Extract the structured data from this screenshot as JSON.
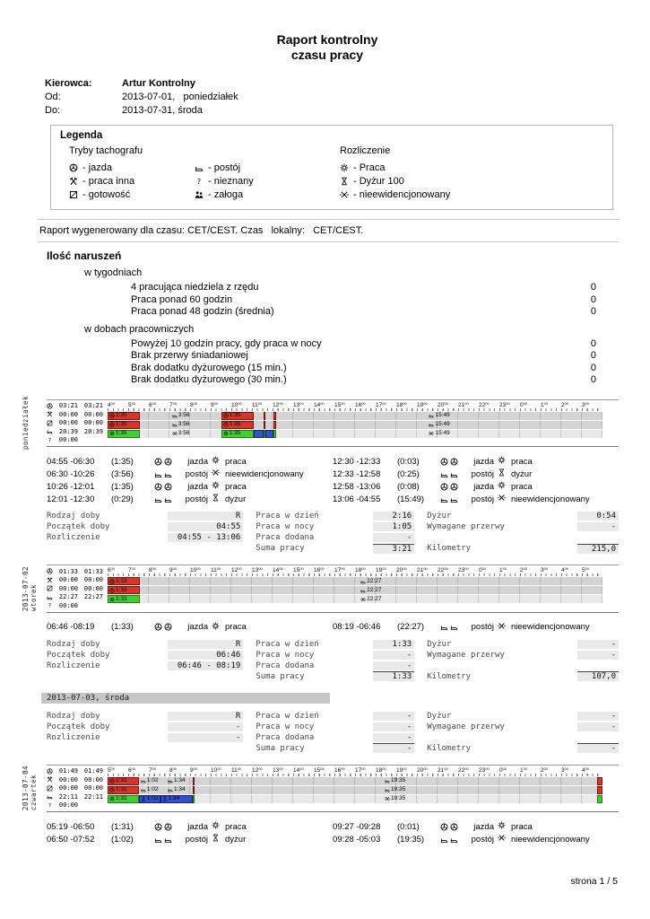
{
  "title": {
    "line1": "Raport kontrolny",
    "line2": "czasu pracy"
  },
  "header": {
    "driver_label": "Kierowca:",
    "driver_name": "Artur Kontrolny",
    "from_label": "Od:",
    "from_value": "2013-07-01,   poniedziałek",
    "to_label": "Do:",
    "to_value": "2013-07-31, środa"
  },
  "legend": {
    "title": "Legenda",
    "tacho_title": "Tryby tachografu",
    "settle_title": "Rozliczenie",
    "tacho_col1": [
      {
        "icon": "jazda-icon",
        "label": "- jazda"
      },
      {
        "icon": "praca-inna-icon",
        "label": "- praca inna"
      },
      {
        "icon": "gotowosc-icon",
        "label": "- gotowość"
      }
    ],
    "tacho_col2": [
      {
        "icon": "postoj-icon",
        "label": "- postój"
      },
      {
        "icon": "nieznany-icon",
        "label": "- nieznany"
      },
      {
        "icon": "zaloga-icon",
        "label": "- załoga"
      }
    ],
    "settle_col": [
      {
        "icon": "praca-icon",
        "label": "- Praca"
      },
      {
        "icon": "dyzur-icon",
        "label": "- Dyżur 100"
      },
      {
        "icon": "nieewid-icon",
        "label": "- nieewidencjonowany"
      }
    ]
  },
  "generated_line": "Raport wygenerowany dla czasu: CET/CEST. Czas   lokalny:   CET/CEST.",
  "violations": {
    "title": "Ilość naruszeń",
    "weekly_title": "w tygodniach",
    "weekly": [
      {
        "label": "4 pracująca niedziela z rzędu",
        "value": "0"
      },
      {
        "label": "Praca ponad 60 godzin",
        "value": "0"
      },
      {
        "label": "Praca ponad 48 godzin (średnia)",
        "value": "0"
      }
    ],
    "daily_title": "w dobach pracowniczych",
    "daily": [
      {
        "label": "Powyżej 10 godzin pracy, gdy praca w nocy",
        "value": "0"
      },
      {
        "label": "Brak przerwy śniadaniowej",
        "value": "0"
      },
      {
        "label": "Brak dodatku dyżurowego (15 min.)",
        "value": "0"
      },
      {
        "label": "Brak dodatku dyżurowego (30 min.)",
        "value": "0"
      }
    ]
  },
  "summary_labels": {
    "rodzaj": "Rodzaj doby",
    "poczatek": "Początek doby",
    "rozliczenie": "Rozliczenie",
    "praca_dzien": "Praca w dzień",
    "praca_noc": "Praca w nocy",
    "praca_dodana": "Praca dodana",
    "suma": "Suma pracy",
    "dyzur": "Dyżur",
    "przerwy": "Wymagane przerwy",
    "kilometry": "Kilometry"
  },
  "days": [
    {
      "vlabels": [
        "poniedziałek"
      ],
      "doba_start": "04:55",
      "hours": [
        "4",
        "5",
        "6",
        "7",
        "8",
        "9",
        "10",
        "11",
        "12",
        "13",
        "14",
        "15",
        "16",
        "17",
        "18",
        "19",
        "20",
        "21",
        "22",
        "23",
        "0",
        "1",
        "2",
        "3"
      ],
      "totals": [
        {
          "icon": "jazda-icon",
          "a": "03:21",
          "b": "03:21"
        },
        {
          "icon": "praca-inna-icon",
          "a": "00:00",
          "b": "00:00"
        },
        {
          "icon": "gotowosc-icon",
          "a": "00:00",
          "b": "00:00"
        },
        {
          "icon": "postoj-icon",
          "a": "20:39",
          "b": "20:39"
        },
        {
          "icon": "nieznany-icon",
          "a": "00:00",
          "b": ""
        }
      ],
      "bars": {
        "tacho": [
          {
            "s": "04:55",
            "e": "06:30",
            "type": "jazda",
            "label": "1:35"
          },
          {
            "s": "06:30",
            "e": "10:26",
            "type": "postoj",
            "label": "3:56"
          },
          {
            "s": "10:26",
            "e": "12:01",
            "type": "jazda",
            "label": "1:35"
          },
          {
            "s": "12:01",
            "e": "12:30",
            "type": "postoj",
            "label": ""
          },
          {
            "s": "12:30",
            "e": "12:33",
            "type": "jazda",
            "label": ""
          },
          {
            "s": "12:33",
            "e": "12:58",
            "type": "postoj",
            "label": ""
          },
          {
            "s": "12:58",
            "e": "13:06",
            "type": "jazda",
            "label": ""
          },
          {
            "s": "13:06",
            "e": "04:55",
            "type": "postoj",
            "label": "15:49"
          }
        ],
        "settle": [
          {
            "s": "04:55",
            "e": "06:30",
            "type": "praca",
            "label": "1:35"
          },
          {
            "s": "06:30",
            "e": "10:26",
            "type": "nieewid",
            "label": "3:56"
          },
          {
            "s": "10:26",
            "e": "12:01",
            "type": "praca",
            "label": "1:35"
          },
          {
            "s": "12:01",
            "e": "12:30",
            "type": "dyzur",
            "label": ""
          },
          {
            "s": "12:30",
            "e": "12:33",
            "type": "praca",
            "label": ""
          },
          {
            "s": "12:33",
            "e": "12:58",
            "type": "dyzur",
            "label": ""
          },
          {
            "s": "12:58",
            "e": "13:06",
            "type": "praca",
            "label": ""
          },
          {
            "s": "13:06",
            "e": "04:55",
            "type": "nieewid",
            "label": "15:49"
          }
        ]
      },
      "activities_left": [
        {
          "range": "04:55 -06:30",
          "dur": "(1:35)",
          "mode": "jazda",
          "mode_icon": "jazda-icon",
          "settle": "praca",
          "settle_icon": "praca-icon"
        },
        {
          "range": "06:30 -10:26",
          "dur": "(3:56)",
          "mode": "postój",
          "mode_icon": "postoj-icon",
          "settle": "nieewidencjonowany",
          "settle_icon": "nieewid-icon"
        },
        {
          "range": "10:26 -12:01",
          "dur": "(1:35)",
          "mode": "jazda",
          "mode_icon": "jazda-icon",
          "settle": "praca",
          "settle_icon": "praca-icon"
        },
        {
          "range": "12:01 -12:30",
          "dur": "(0:29)",
          "mode": "postój",
          "mode_icon": "postoj-icon",
          "settle": "dyżur",
          "settle_icon": "dyzur-icon"
        }
      ],
      "activities_right": [
        {
          "range": "12:30 -12:33",
          "dur": "(0:03)",
          "mode": "jazda",
          "mode_icon": "jazda-icon",
          "settle": "praca",
          "settle_icon": "praca-icon"
        },
        {
          "range": "12:33 -12:58",
          "dur": "(0:25)",
          "mode": "postój",
          "mode_icon": "postoj-icon",
          "settle": "dyżur",
          "settle_icon": "dyzur-icon"
        },
        {
          "range": "12:58 -13:06",
          "dur": "(0:08)",
          "mode": "jazda",
          "mode_icon": "jazda-icon",
          "settle": "praca",
          "settle_icon": "praca-icon"
        },
        {
          "range": "13:06 -04:55",
          "dur": "(15:49)",
          "mode": "postój",
          "mode_icon": "postoj-icon",
          "settle": "nieewidencjonowany",
          "settle_icon": "nieewid-icon"
        }
      ],
      "summary": {
        "rodzaj": "R",
        "poczatek": "04:55",
        "rozliczenie": "04:55 - 13:06",
        "praca_dzien": "2:16",
        "praca_noc": "1:05",
        "praca_dodana": "-",
        "suma": "3:21",
        "dyzur": "0:54",
        "przerwy": "-",
        "kilometry": "215,0"
      }
    },
    {
      "vlabels": [
        "2013-07-02",
        "wtorek"
      ],
      "doba_start": "06:46",
      "hours": [
        "6",
        "7",
        "8",
        "9",
        "10",
        "11",
        "12",
        "13",
        "14",
        "15",
        "16",
        "17",
        "18",
        "19",
        "20",
        "21",
        "22",
        "23",
        "0",
        "1",
        "2",
        "3",
        "4",
        "5"
      ],
      "totals": [
        {
          "icon": "jazda-icon",
          "a": "01:33",
          "b": "01:33"
        },
        {
          "icon": "praca-inna-icon",
          "a": "00:00",
          "b": "00:00"
        },
        {
          "icon": "gotowosc-icon",
          "a": "00:00",
          "b": "00:00"
        },
        {
          "icon": "postoj-icon",
          "a": "22:27",
          "b": "22:27"
        },
        {
          "icon": "nieznany-icon",
          "a": "00:00",
          "b": ""
        }
      ],
      "bars": {
        "tacho": [
          {
            "s": "06:46",
            "e": "08:19",
            "type": "jazda",
            "label": "1:33"
          },
          {
            "s": "08:19",
            "e": "06:46",
            "type": "postoj",
            "label": "22:27"
          }
        ],
        "settle": [
          {
            "s": "06:46",
            "e": "08:19",
            "type": "praca",
            "label": "1:33"
          },
          {
            "s": "08:19",
            "e": "06:46",
            "type": "nieewid",
            "label": "22:27"
          }
        ]
      },
      "activities_left": [
        {
          "range": "06:46 -08:19",
          "dur": "(1:33)",
          "mode": "jazda",
          "mode_icon": "jazda-icon",
          "settle": "praca",
          "settle_icon": "praca-icon"
        }
      ],
      "activities_right": [
        {
          "range": "08:19 -06:46",
          "dur": "(22:27)",
          "mode": "postój",
          "mode_icon": "postoj-icon",
          "settle": "nieewidencjonowany",
          "settle_icon": "nieewid-icon"
        }
      ],
      "summary": {
        "rodzaj": "R",
        "poczatek": "06:46",
        "rozliczenie": "06:46 - 08:19",
        "praca_dzien": "1:33",
        "praca_noc": "-",
        "praca_dodana": "-",
        "suma": "1:33",
        "dyzur": "-",
        "przerwy": "-",
        "kilometry": "107,0"
      }
    },
    {
      "header_bar": "2013-07-03, środa",
      "summary": {
        "rodzaj": "R",
        "poczatek": "-",
        "rozliczenie": "-",
        "praca_dzien": "-",
        "praca_noc": "-",
        "praca_dodana": "-",
        "suma": "-",
        "dyzur": "-",
        "przerwy": "-",
        "kilometry": "-"
      }
    },
    {
      "vlabels": [
        "2013-07-04",
        "czwartek"
      ],
      "doba_start": "05:19",
      "hours": [
        "5",
        "6",
        "7",
        "8",
        "9",
        "10",
        "11",
        "12",
        "13",
        "14",
        "15",
        "16",
        "17",
        "18",
        "19",
        "20",
        "21",
        "22",
        "23",
        "0",
        "1",
        "2",
        "3",
        "4"
      ],
      "totals": [
        {
          "icon": "jazda-icon",
          "a": "01:49",
          "b": "01:49"
        },
        {
          "icon": "praca-inna-icon",
          "a": "00:00",
          "b": "00:00"
        },
        {
          "icon": "gotowosc-icon",
          "a": "00:00",
          "b": "00:00"
        },
        {
          "icon": "postoj-icon",
          "a": "22:11",
          "b": "22:11"
        },
        {
          "icon": "nieznany-icon",
          "a": "00:00",
          "b": ""
        }
      ],
      "bars": {
        "tacho": [
          {
            "s": "05:19",
            "e": "06:50",
            "type": "jazda",
            "label": "1:31"
          },
          {
            "s": "06:50",
            "e": "07:52",
            "type": "postoj",
            "label": "1:02"
          },
          {
            "s": "07:52",
            "e": "09:27",
            "type": "postoj",
            "label": "1:34"
          },
          {
            "s": "09:27",
            "e": "09:28",
            "type": "jazda",
            "label": ""
          },
          {
            "s": "09:28",
            "e": "05:03",
            "type": "postoj",
            "label": "19:35"
          },
          {
            "s": "05:03",
            "e": "05:19",
            "type": "jazda",
            "label": ""
          }
        ],
        "settle": [
          {
            "s": "05:19",
            "e": "06:50",
            "type": "praca",
            "label": "1:31"
          },
          {
            "s": "06:50",
            "e": "07:52",
            "type": "dyzur",
            "label": "1:02"
          },
          {
            "s": "07:52",
            "e": "09:27",
            "type": "dyzur",
            "label": "1:34"
          },
          {
            "s": "09:27",
            "e": "09:28",
            "type": "praca",
            "label": ""
          },
          {
            "s": "09:28",
            "e": "05:03",
            "type": "nieewid",
            "label": "19:35"
          },
          {
            "s": "05:03",
            "e": "05:19",
            "type": "praca",
            "label": ""
          }
        ]
      },
      "activities_left": [
        {
          "range": "05:19 -06:50",
          "dur": "(1:31)",
          "mode": "jazda",
          "mode_icon": "jazda-icon",
          "settle": "praca",
          "settle_icon": "praca-icon"
        },
        {
          "range": "06:50 -07:52",
          "dur": "(1:02)",
          "mode": "postój",
          "mode_icon": "postoj-icon",
          "settle": "dyżur",
          "settle_icon": "dyzur-icon"
        }
      ],
      "activities_right": [
        {
          "range": "09:27 -09:28",
          "dur": "(0:01)",
          "mode": "jazda",
          "mode_icon": "jazda-icon",
          "settle": "praca",
          "settle_icon": "praca-icon"
        },
        {
          "range": "09:28 -05:03",
          "dur": "(19:35)",
          "mode": "postój",
          "mode_icon": "postoj-icon",
          "settle": "nieewidencjonowany",
          "settle_icon": "nieewid-icon"
        }
      ]
    }
  ],
  "footer": "strona 1 / 5"
}
